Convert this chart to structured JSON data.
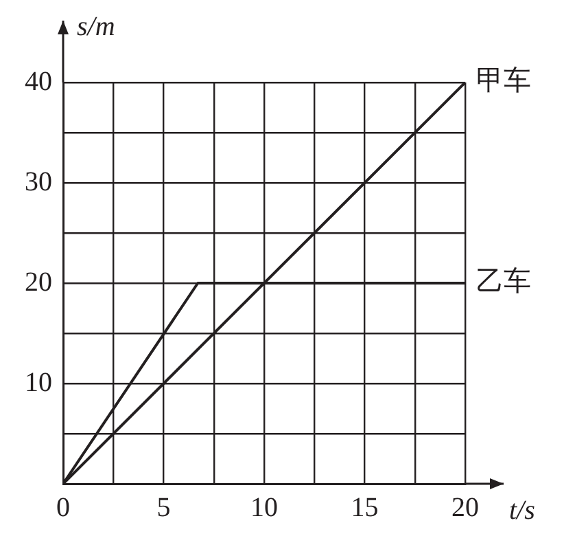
{
  "chart_data": {
    "type": "line",
    "xlabel": "t/s",
    "ylabel": "s/m",
    "xlim": [
      0,
      20
    ],
    "ylim": [
      0,
      40
    ],
    "xticks": [
      0,
      {
        "value": 2.5,
        "label": null
      },
      5,
      {
        "value": 7.5,
        "label": null
      },
      10,
      {
        "value": 12.5,
        "label": null
      },
      15,
      {
        "value": 17.5,
        "label": null
      },
      20
    ],
    "yticks": [
      {
        "value": 0,
        "label": null
      },
      {
        "value": 5,
        "label": null
      },
      10,
      {
        "value": 15,
        "label": null
      },
      20,
      {
        "value": 25,
        "label": null
      },
      30,
      {
        "value": 35,
        "label": null
      },
      40
    ],
    "grid": true,
    "legend": false,
    "marker": "none",
    "line_style": "solid",
    "series": [
      {
        "name": "甲车",
        "color": "#231f20",
        "x": [
          0,
          20
        ],
        "values": [
          0,
          40
        ]
      },
      {
        "name": "乙车",
        "color": "#231f20",
        "x": [
          0,
          6.7,
          20
        ],
        "values": [
          0,
          20,
          20
        ]
      }
    ]
  }
}
